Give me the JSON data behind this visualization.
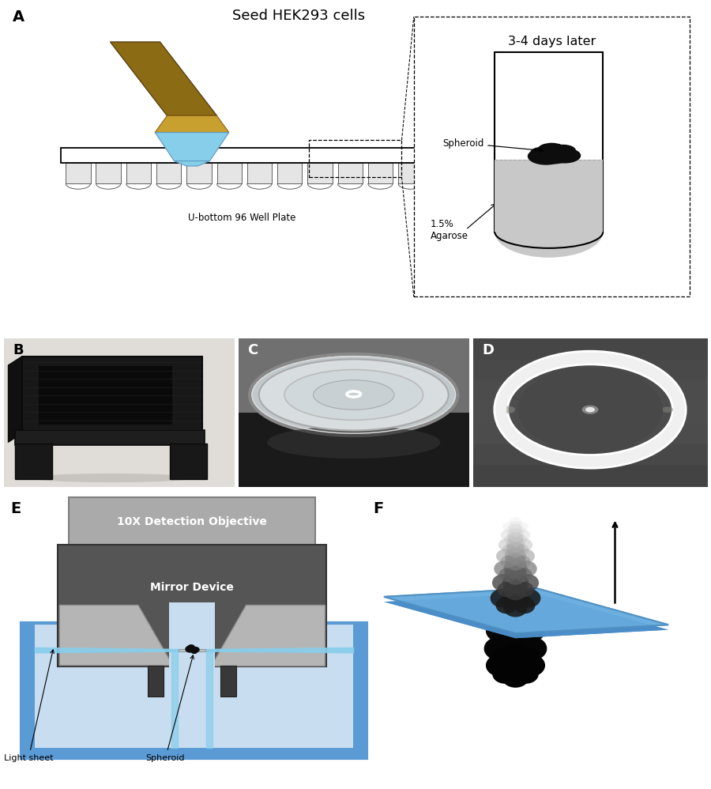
{
  "panel_A_label": "A",
  "panel_B_label": "B",
  "panel_C_label": "C",
  "panel_D_label": "D",
  "panel_E_label": "E",
  "panel_F_label": "F",
  "panel_A_title": "Seed HEK293 cells",
  "days_later_text": "3-4 days later",
  "spheroid_label": "Spheroid",
  "agarose_label": "1.5%\nAgarose",
  "well_plate_label": "U-bottom 96 Well Plate",
  "detection_obj_text": "10X Detection Objective",
  "mirror_device_text": "Mirror Device",
  "light_sheet_label": "Light sheet",
  "spheroid_label_E": "Spheroid",
  "bg_color": "#ffffff",
  "tan_pip": "#8B6914",
  "gold_pip": "#c8a030",
  "blue_tip": "#87CEEB",
  "black": "#111111",
  "gray_obj": "#aaaaaa",
  "gray_mirror_dark": "#555555",
  "gray_mirror_light": "#b8b8b8",
  "blue_water": "#b8cfe8",
  "blue_wall": "#5b9bd5",
  "blue_plane": "#5b9bd5",
  "agarose_gray": "#c8c8c8",
  "photo_B_bg": "#d8d5ce",
  "photo_C_bg_top": "#888888",
  "photo_C_bg_bot": "#444444",
  "photo_D_bg": "#555558"
}
